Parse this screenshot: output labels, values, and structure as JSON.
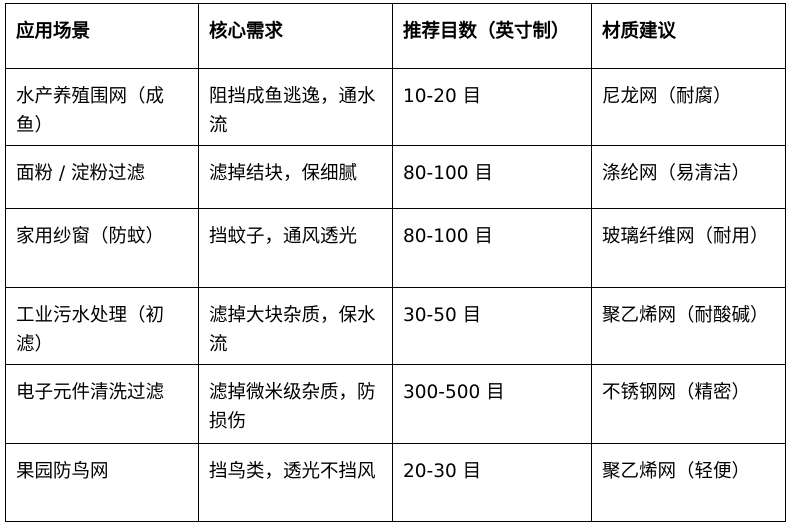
{
  "table": {
    "headers": [
      "应用场景",
      "核心需求",
      "推荐目数（英寸制）",
      "材质建议"
    ],
    "rows": [
      [
        "水产养殖围网（成鱼）",
        "阻挡成鱼逃逸，通水流",
        "10-20 目",
        "尼龙网（耐腐）"
      ],
      [
        "面粉 / 淀粉过滤",
        "滤掉结块，保细腻",
        "80-100 目",
        "涤纶网（易清洁）"
      ],
      [
        "家用纱窗（防蚊）",
        "挡蚊子，通风透光",
        "80-100 目",
        "玻璃纤维网（耐用）"
      ],
      [
        "工业污水处理（初滤）",
        "滤掉大块杂质，保水流",
        "30-50 目",
        "聚乙烯网（耐酸碱）"
      ],
      [
        "电子元件清洗过滤",
        "滤掉微米级杂质，防损伤",
        "300-500 目",
        "不锈钢网（精密）"
      ],
      [
        "果园防鸟网",
        "挡鸟类，透光不挡风",
        "20-30 目",
        "聚乙烯网（轻便）"
      ]
    ]
  }
}
